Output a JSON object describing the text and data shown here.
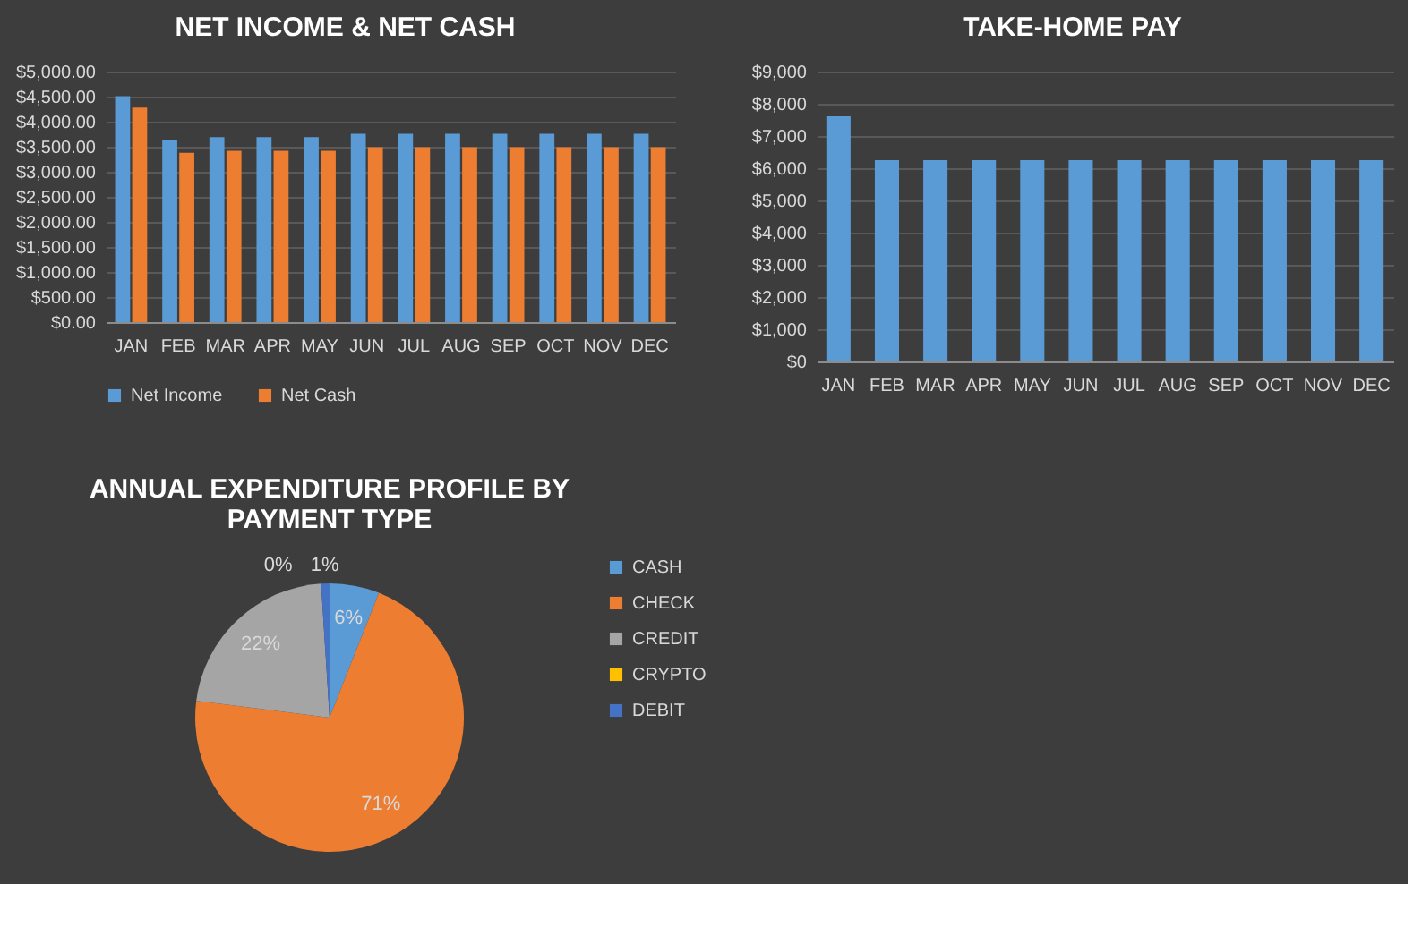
{
  "chart_data": [
    {
      "type": "bar",
      "title": "NET INCOME & NET CASH",
      "categories": [
        "JAN",
        "FEB",
        "MAR",
        "APR",
        "MAY",
        "JUN",
        "JUL",
        "AUG",
        "SEP",
        "OCT",
        "NOV",
        "DEC"
      ],
      "series": [
        {
          "name": "Net Income",
          "color": "#5b9bd5",
          "values": [
            4510,
            3630,
            3690,
            3690,
            3690,
            3760,
            3760,
            3760,
            3760,
            3760,
            3760,
            3760
          ]
        },
        {
          "name": "Net Cash",
          "color": "#ed7d31",
          "values": [
            4280,
            3380,
            3420,
            3420,
            3420,
            3490,
            3490,
            3490,
            3490,
            3490,
            3490,
            3490
          ]
        }
      ],
      "ylim": [
        0,
        5000
      ],
      "yticks": [
        {
          "value": 0,
          "label": "$0.00"
        },
        {
          "value": 500,
          "label": "$500.00"
        },
        {
          "value": 1000,
          "label": "$1,000.00"
        },
        {
          "value": 1500,
          "label": "$1,500.00"
        },
        {
          "value": 2000,
          "label": "$2,000.00"
        },
        {
          "value": 2500,
          "label": "$2,500.00"
        },
        {
          "value": 3000,
          "label": "$3,000.00"
        },
        {
          "value": 3500,
          "label": "$3,500.00"
        },
        {
          "value": 4000,
          "label": "$4,000.00"
        },
        {
          "value": 4500,
          "label": "$4,500.00"
        },
        {
          "value": 5000,
          "label": "$5,000.00"
        }
      ],
      "grid": "y",
      "legend": "bottom"
    },
    {
      "type": "bar",
      "title": "TAKE-HOME PAY",
      "categories": [
        "JAN",
        "FEB",
        "MAR",
        "APR",
        "MAY",
        "JUN",
        "JUL",
        "AUG",
        "SEP",
        "OCT",
        "NOV",
        "DEC"
      ],
      "values": [
        7610,
        6250,
        6250,
        6250,
        6250,
        6250,
        6250,
        6250,
        6250,
        6250,
        6250,
        6250
      ],
      "color": "#5b9bd5",
      "ylim": [
        0,
        9000
      ],
      "yticks": [
        {
          "value": 0,
          "label": "$0"
        },
        {
          "value": 1000,
          "label": "$1,000"
        },
        {
          "value": 2000,
          "label": "$2,000"
        },
        {
          "value": 3000,
          "label": "$3,000"
        },
        {
          "value": 4000,
          "label": "$4,000"
        },
        {
          "value": 5000,
          "label": "$5,000"
        },
        {
          "value": 6000,
          "label": "$6,000"
        },
        {
          "value": 7000,
          "label": "$7,000"
        },
        {
          "value": 8000,
          "label": "$8,000"
        },
        {
          "value": 9000,
          "label": "$9,000"
        }
      ],
      "grid": "y"
    },
    {
      "type": "pie",
      "title": "ANNUAL EXPENDITURE PROFILE BY PAYMENT TYPE",
      "categories": [
        "CASH",
        "CHECK",
        "CREDIT",
        "CRYPTO",
        "DEBIT"
      ],
      "values": [
        6,
        71,
        22,
        0,
        1
      ],
      "colors": [
        "#5b9bd5",
        "#ed7d31",
        "#a5a5a5",
        "#ffc000",
        "#4472c4"
      ],
      "value_labels": [
        "6%",
        "71%",
        "22%",
        "0%",
        "1%"
      ],
      "legend": "right"
    }
  ]
}
